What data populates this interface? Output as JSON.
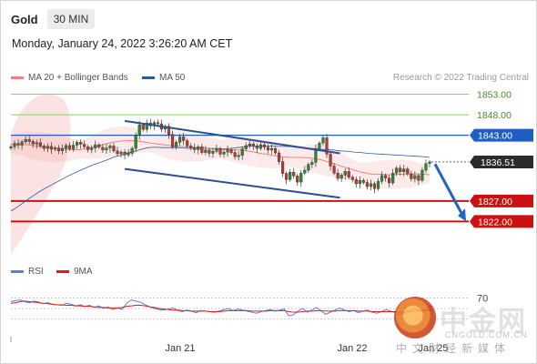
{
  "header": {
    "symbol": "Gold",
    "timeframe": "30 MIN",
    "datetime": "Monday, January 24, 2022 3:26:20 AM CET"
  },
  "legend": {
    "ma20": "MA 20 + Bollinger Bands",
    "ma50": "MA 50",
    "ma20_color": "#f08080",
    "ma50_color": "#2c5aa0",
    "credit": "Research © 2022 Trading Central"
  },
  "rsi_legend": {
    "rsi": "RSI",
    "ma9": "9MA",
    "rsi_color": "#5b7fd6",
    "ma9_color": "#d62020"
  },
  "watermark": {
    "name": "中金网",
    "url": "CNGOLD.COM.CN",
    "tagline": "中文财经新媒体"
  },
  "chart_data": [
    {
      "type": "line",
      "title": "Gold 30 MIN",
      "x_ticks": [
        "Jan 21",
        "Jan 22",
        "Jan 25"
      ],
      "ylim": [
        1815,
        1856
      ],
      "levels": [
        {
          "label": "1853.00",
          "value": 1853.0,
          "kind": "target",
          "color": "#8fd16a"
        },
        {
          "label": "1848.00",
          "value": 1848.0,
          "kind": "target",
          "color": "#8fd16a"
        },
        {
          "label": "1843.00",
          "value": 1843.0,
          "kind": "resistance",
          "color": "#1f5fc4"
        },
        {
          "label": "1827.00",
          "value": 1827.0,
          "kind": "support",
          "color": "#cc1111"
        },
        {
          "label": "1822.00",
          "value": 1822.0,
          "kind": "support",
          "color": "#cc1111"
        }
      ],
      "last_price": {
        "label": "1836.51",
        "value": 1836.51
      },
      "channel": {
        "upper": [
          [
            0.272,
            1846.5
          ],
          [
            0.786,
            1838.6
          ]
        ],
        "lower": [
          [
            0.272,
            1834.8
          ],
          [
            0.786,
            1827.8
          ]
        ]
      },
      "forecast_arrow": {
        "from": 1836.0,
        "to": 1822.5,
        "direction": "down"
      },
      "series": [
        {
          "name": "Price",
          "values": [
            1840.2,
            1841.0,
            1840.6,
            1841.4,
            1842.0,
            1841.5,
            1840.9,
            1841.2,
            1840.4,
            1839.8,
            1840.3,
            1839.6,
            1839.9,
            1839.2,
            1839.8,
            1840.5,
            1839.7,
            1840.6,
            1841.3,
            1840.8,
            1840.2,
            1839.5,
            1839.9,
            1840.7,
            1840.1,
            1839.4,
            1839.9,
            1840.4,
            1839.2,
            1838.5,
            1838.9,
            1838.2,
            1838.6,
            1839.8,
            1843.0,
            1845.5,
            1844.4,
            1846.0,
            1845.3,
            1846.1,
            1845.8,
            1844.5,
            1845.2,
            1843.2,
            1840.2,
            1841.3,
            1842.6,
            1841.7,
            1840.4,
            1840.0,
            1839.5,
            1840.2,
            1838.8,
            1839.4,
            1838.6,
            1839.1,
            1839.7,
            1838.4,
            1838.9,
            1839.5,
            1838.8,
            1837.8,
            1838.1,
            1839.7,
            1840.5,
            1840.9,
            1840.3,
            1839.8,
            1840.7,
            1840.1,
            1839.4,
            1839.8,
            1838.7,
            1836.6,
            1833.7,
            1832.2,
            1834.0,
            1833.1,
            1831.6,
            1833.8,
            1834.5,
            1835.9,
            1836.4,
            1839.8,
            1841.1,
            1842.4,
            1838.4,
            1835.5,
            1833.8,
            1832.5,
            1833.3,
            1834.2,
            1832.8,
            1832.2,
            1831.2,
            1832.0,
            1831.5,
            1830.5,
            1831.2,
            1830.0,
            1831.8,
            1833.2,
            1832.6,
            1831.4,
            1833.8,
            1835.0,
            1834.1,
            1834.8,
            1833.6,
            1832.4,
            1833.2,
            1832.0,
            1834.5,
            1836.1,
            1836.5
          ]
        },
        {
          "name": "MA 50",
          "values": [
            1824.5,
            1825.6,
            1826.8,
            1828.0,
            1829.1,
            1830.1,
            1831.0,
            1831.9,
            1832.8,
            1833.6,
            1834.4,
            1835.1,
            1835.8,
            1836.4,
            1837.0,
            1837.7,
            1838.1,
            1838.7,
            1839.1,
            1839.6,
            1840.0,
            1840.1,
            1840.0,
            1840.0,
            1840.0,
            1839.9,
            1839.8,
            1839.9,
            1839.9,
            1839.8,
            1839.8,
            1839.7,
            1839.8,
            1840.0,
            1840.2,
            1840.4,
            1840.4,
            1840.4,
            1840.4,
            1840.3,
            1840.3,
            1840.2,
            1840.0,
            1839.9,
            1839.8,
            1839.6,
            1839.5,
            1839.4,
            1839.2,
            1839.1,
            1838.9,
            1838.8,
            1838.6,
            1838.5,
            1838.4,
            1838.3,
            1838.2,
            1838.1,
            1838.0,
            1837.9,
            1837.8,
            1837.6
          ]
        },
        {
          "name": "MA 20",
          "values": [
            1840.9,
            1840.8,
            1840.6,
            1840.3,
            1840.0,
            1839.8,
            1839.5,
            1839.5,
            1840.0,
            1840.6,
            1841.2,
            1841.6,
            1841.7,
            1841.5,
            1841.1,
            1840.8,
            1840.5,
            1840.3,
            1840.1,
            1839.9,
            1839.7,
            1839.6,
            1839.5,
            1839.4,
            1839.1,
            1838.6,
            1838.2,
            1837.8,
            1837.6,
            1837.6,
            1837.5,
            1837.1,
            1836.4,
            1835.6,
            1834.8,
            1834.1,
            1833.6,
            1833.5,
            1833.4,
            1833.5,
            1833.6,
            1833.6,
            1833.4
          ]
        }
      ]
    },
    {
      "type": "line",
      "title": "RSI",
      "ylim": [
        0,
        100
      ],
      "y_ticks": [
        "70"
      ],
      "series": [
        {
          "name": "RSI",
          "values": [
            63,
            65,
            66,
            63,
            61,
            64,
            62,
            59,
            61,
            58,
            57,
            56,
            60,
            58,
            55,
            57,
            54,
            56,
            52,
            55,
            50,
            53,
            48,
            51,
            48,
            60,
            66,
            64,
            62,
            57,
            53,
            50,
            48,
            47,
            49,
            51,
            46,
            44,
            47,
            45,
            42,
            46,
            45,
            44,
            43,
            45,
            48,
            50,
            46,
            49,
            47,
            45,
            43,
            41,
            44,
            46,
            48,
            45,
            47,
            49,
            36,
            38,
            45,
            50,
            43,
            47,
            52,
            45,
            39,
            43,
            47,
            51,
            47,
            44,
            46,
            42,
            45,
            47,
            43,
            41,
            44,
            48,
            45,
            42,
            38,
            42,
            46,
            50,
            47,
            45,
            52,
            55
          ]
        },
        {
          "name": "9MA",
          "values": [
            60,
            61,
            63,
            64,
            63,
            62,
            61,
            60,
            59,
            58,
            57,
            57,
            56,
            56,
            55,
            55,
            54,
            54,
            53,
            52,
            52,
            51,
            51,
            51,
            52,
            54,
            55,
            56,
            56,
            55,
            53,
            52,
            50,
            49,
            48,
            47,
            47,
            46,
            46,
            45,
            45,
            45,
            45,
            44,
            44,
            44,
            45,
            46,
            46,
            46,
            46,
            46,
            45,
            45,
            45,
            45,
            46,
            46,
            46,
            46,
            44,
            43,
            43,
            44,
            45,
            45,
            46,
            46,
            45,
            45,
            45,
            46,
            46,
            46,
            46,
            45,
            45,
            45,
            44,
            44,
            44,
            44,
            44,
            44,
            43,
            43,
            44,
            45,
            46,
            46,
            47,
            48
          ]
        }
      ]
    }
  ]
}
